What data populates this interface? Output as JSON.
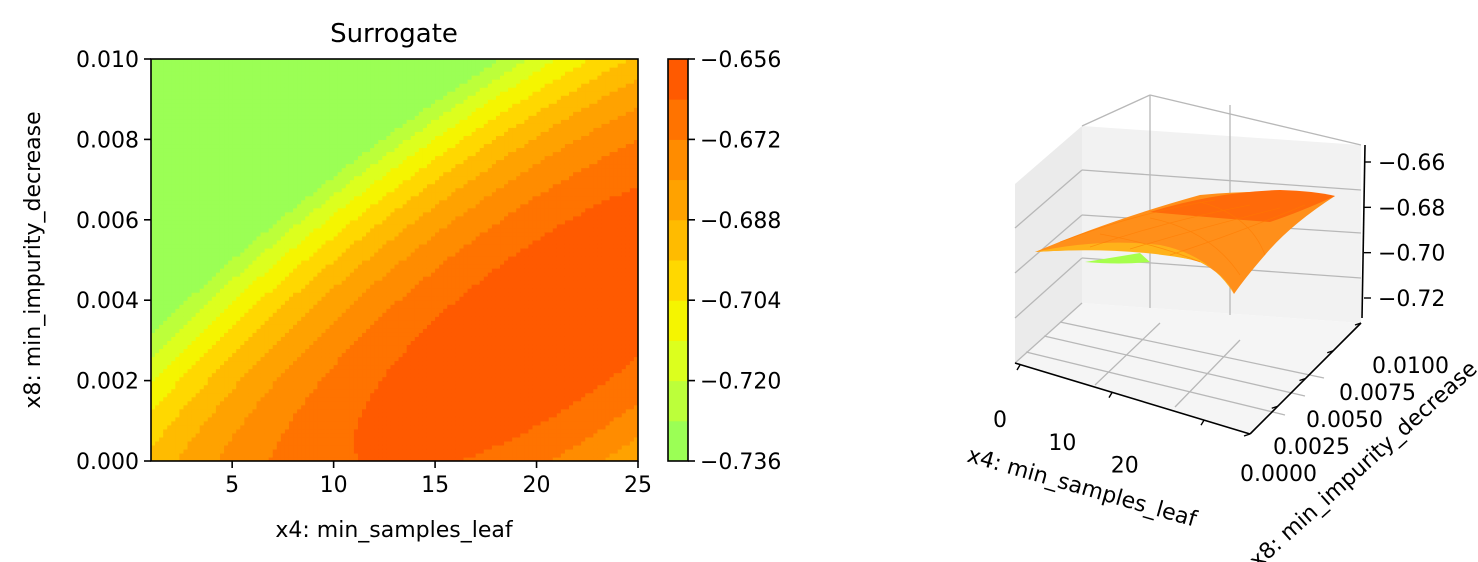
{
  "chart_data": [
    {
      "type": "heatmap",
      "subtype": "filled-contour",
      "title": "Surrogate",
      "xlabel": "x4: min_samples_leaf",
      "ylabel": "x8: min_impurity_decrease",
      "xlim": [
        1,
        25
      ],
      "ylim": [
        0.0,
        0.01
      ],
      "x_ticks": [
        "5",
        "10",
        "15",
        "20",
        "25"
      ],
      "y_ticks": [
        "0.000",
        "0.002",
        "0.004",
        "0.006",
        "0.008",
        "0.010"
      ],
      "x_tick_values": [
        5,
        10,
        15,
        20,
        25
      ],
      "y_tick_values": [
        0.0,
        0.002,
        0.004,
        0.006,
        0.008,
        0.01
      ],
      "optimum": {
        "x": 21,
        "y": 0.0035,
        "value": -0.657
      },
      "corner_values": {
        "x1_y0": -0.686,
        "x1_y1": -0.731,
        "x25_y0": -0.666,
        "x25_y1": -0.676
      },
      "grid": false,
      "colorbar": {
        "levels": [
          -0.736,
          -0.728,
          -0.72,
          -0.712,
          -0.704,
          -0.696,
          -0.688,
          -0.68,
          -0.672,
          -0.664,
          -0.656
        ],
        "tick_labels": [
          "−0.656",
          "−0.672",
          "−0.688",
          "−0.704",
          "−0.720",
          "−0.736"
        ],
        "tick_values": [
          -0.656,
          -0.672,
          -0.688,
          -0.704,
          -0.72,
          -0.736
        ],
        "colors": [
          "#9bff55",
          "#bcff3a",
          "#dcff1e",
          "#f5f500",
          "#ffd800",
          "#ffbb00",
          "#ffa200",
          "#ff8c00",
          "#ff7300",
          "#ff5a00"
        ]
      }
    },
    {
      "type": "surface",
      "xlabel": "x4: min_samples_leaf",
      "ylabel": "x8: min_impurity_decrease",
      "x_ticks": [
        "0",
        "10",
        "20"
      ],
      "x_tick_values": [
        0,
        10,
        20
      ],
      "y_ticks": [
        "0.0000",
        "0.0025",
        "0.0050",
        "0.0075",
        "0.0100"
      ],
      "y_tick_values": [
        0.0,
        0.0025,
        0.005,
        0.0075,
        0.01
      ],
      "z_ticks": [
        "−0.66",
        "−0.68",
        "−0.70",
        "−0.72"
      ],
      "z_tick_values": [
        -0.66,
        -0.68,
        -0.7,
        -0.72
      ],
      "grid": true
    }
  ]
}
